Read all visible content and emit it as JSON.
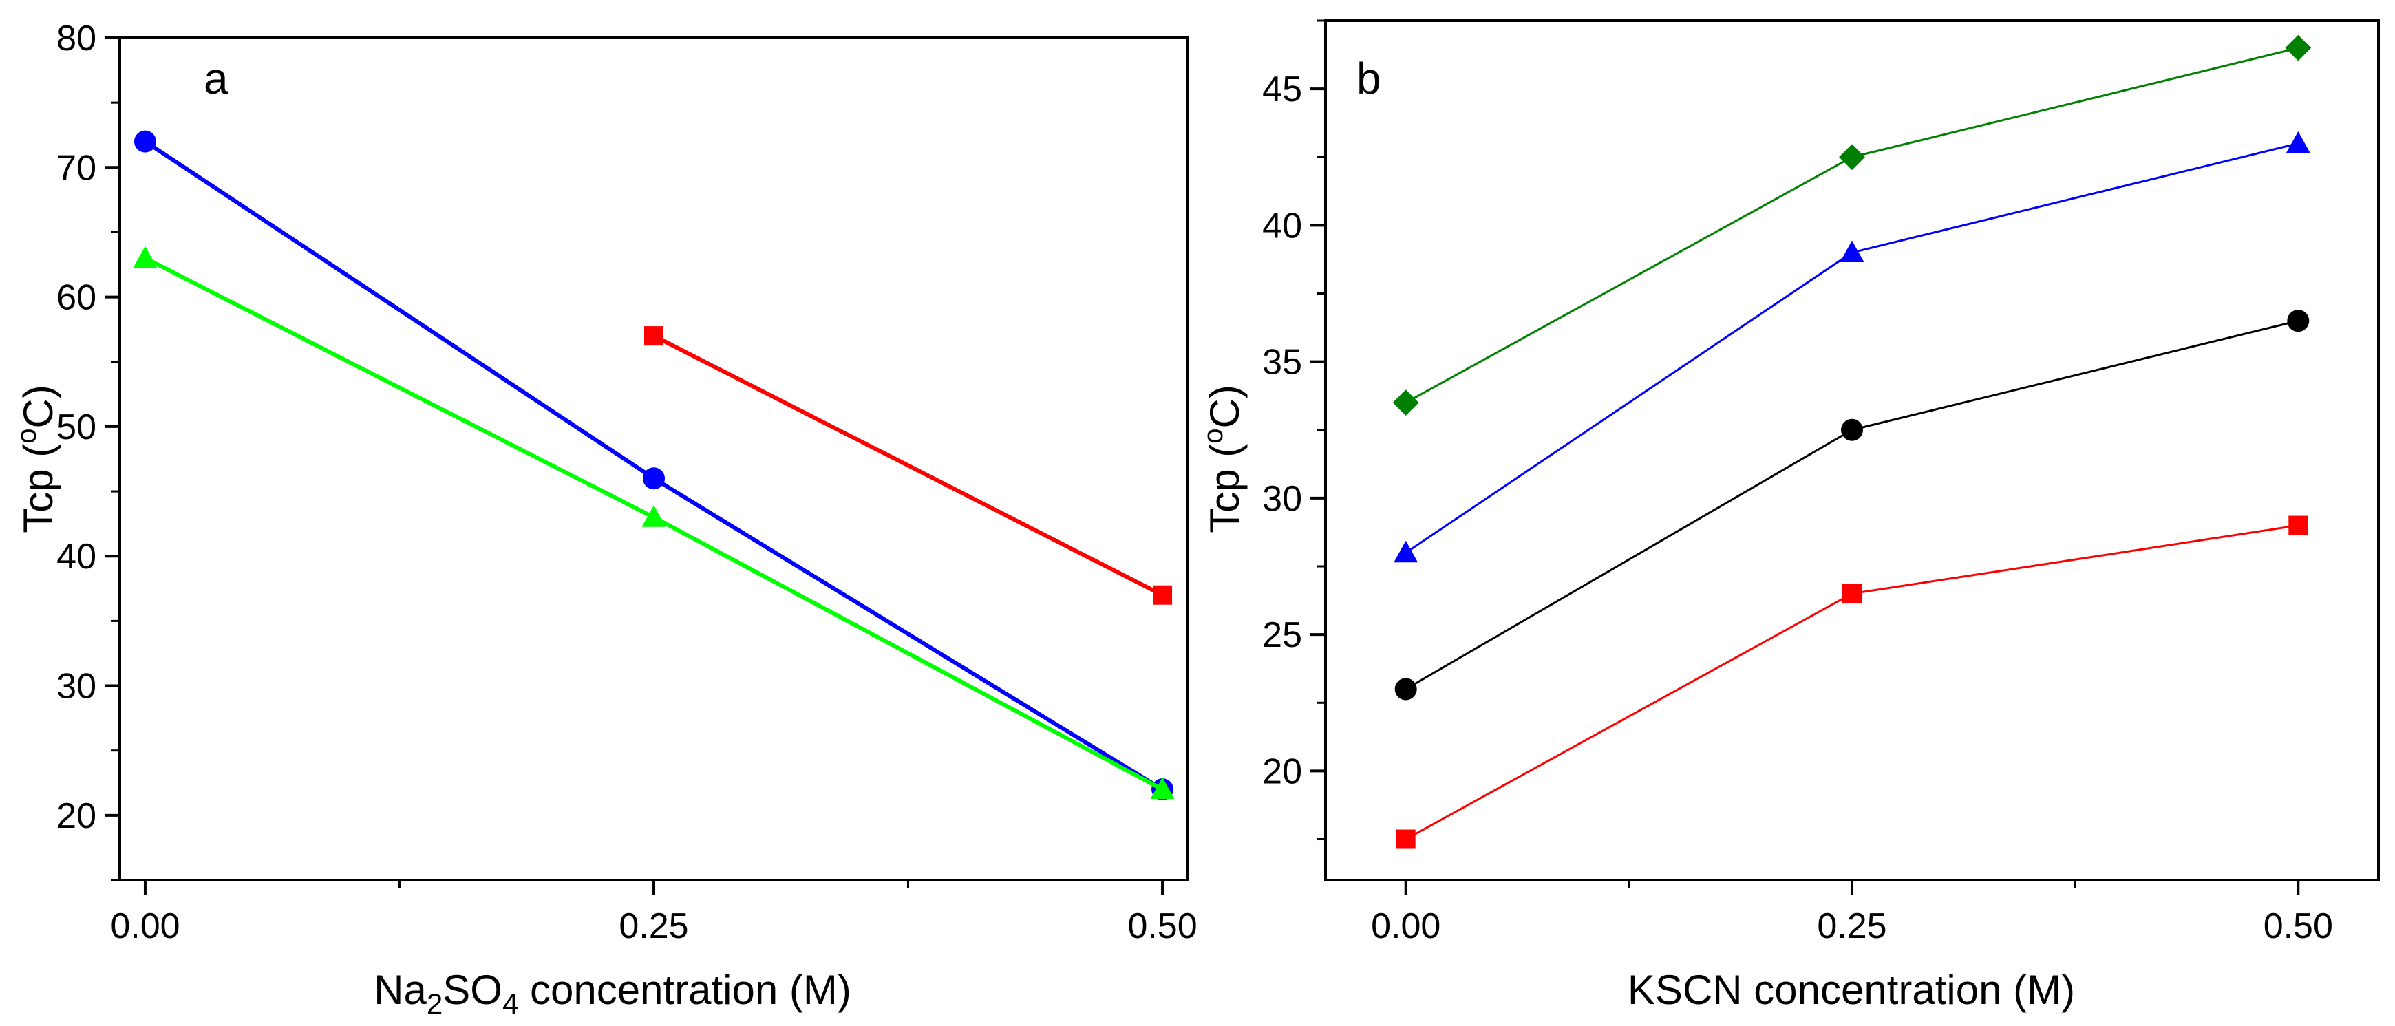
{
  "chart_data": [
    {
      "panel": "a",
      "type": "line",
      "title": "",
      "xlabel": "Na2SO4 concentration (M)",
      "xlabel_parts": {
        "prefix": "Na",
        "sub1": "2",
        "mid": "SO",
        "sub2": "4",
        "suffix": " concentration (M)"
      },
      "ylabel": "Tcp (oC)",
      "ylabel_parts": {
        "prefix": "Tcp (",
        "sup": "o",
        "suffix": "C)"
      },
      "xlim": [
        -0.0125,
        0.5125
      ],
      "ylim": [
        15,
        80
      ],
      "xticks": [
        0.0,
        0.25,
        0.5
      ],
      "xtick_labels": [
        "0.00",
        "0.25",
        "0.50"
      ],
      "xminor": [
        0.125,
        0.375
      ],
      "yticks": [
        20,
        30,
        40,
        50,
        60,
        70,
        80
      ],
      "ytick_labels": [
        "20",
        "30",
        "40",
        "50",
        "60",
        "70",
        "80"
      ],
      "yminor": [
        15,
        25,
        35,
        45,
        55,
        65,
        75
      ],
      "grid": false,
      "series": [
        {
          "name": "red-squares",
          "color": "#ff0000",
          "marker": "square",
          "x": [
            0.25,
            0.5
          ],
          "y": [
            57,
            37
          ]
        },
        {
          "name": "blue-circles",
          "color": "#0000ff",
          "marker": "circle",
          "x": [
            0.0,
            0.25,
            0.5
          ],
          "y": [
            72,
            46,
            22
          ]
        },
        {
          "name": "green-triangles",
          "color": "#00ff00",
          "marker": "triangle",
          "x": [
            0.0,
            0.25,
            0.5
          ],
          "y": [
            63,
            43,
            22
          ]
        }
      ]
    },
    {
      "panel": "b",
      "type": "line",
      "title": "",
      "xlabel": "KSCN concentration (M)",
      "ylabel": "Tcp (oC)",
      "ylabel_parts": {
        "prefix": "Tcp (",
        "sup": "o",
        "suffix": "C)"
      },
      "xlim": [
        -0.045,
        0.545
      ],
      "ylim": [
        16,
        47.5
      ],
      "xticks": [
        0.0,
        0.25,
        0.5
      ],
      "xtick_labels": [
        "0.00",
        "0.25",
        "0.50"
      ],
      "xminor": [
        0.125,
        0.375
      ],
      "yticks": [
        20,
        25,
        30,
        35,
        40,
        45
      ],
      "ytick_labels": [
        "20",
        "25",
        "30",
        "35",
        "40",
        "45"
      ],
      "yminor": [
        17.5,
        22.5,
        27.5,
        32.5,
        37.5,
        42.5,
        47.5
      ],
      "grid": false,
      "series": [
        {
          "name": "green-diamonds",
          "color": "#008000",
          "marker": "diamond",
          "x": [
            0.0,
            0.25,
            0.5
          ],
          "y": [
            33.5,
            42.5,
            46.5
          ]
        },
        {
          "name": "blue-triangles",
          "color": "#0000ff",
          "marker": "triangle",
          "x": [
            0.0,
            0.25,
            0.5
          ],
          "y": [
            28,
            39,
            43
          ]
        },
        {
          "name": "black-circles",
          "color": "#000000",
          "marker": "circle",
          "x": [
            0.0,
            0.25,
            0.5
          ],
          "y": [
            23,
            32.5,
            36.5
          ]
        },
        {
          "name": "red-squares",
          "color": "#ff0000",
          "marker": "square",
          "x": [
            0.0,
            0.25,
            0.5
          ],
          "y": [
            17.5,
            26.5,
            29
          ]
        }
      ]
    }
  ]
}
